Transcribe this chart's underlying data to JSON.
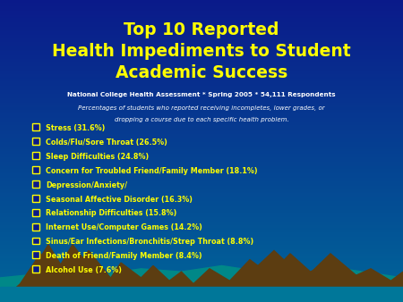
{
  "title_line1": "Top 10 Reported",
  "title_line2": "Health Impediments to Student",
  "title_line3": "Academic Success",
  "subtitle1": "National College Health Assessment * Spring 2005 * 54,111 Respondents",
  "subtitle2": "Percentages of students who reported receiving incompletes, lower grades, or",
  "subtitle3": "dropping a course due to each specific health problem.",
  "items": [
    "Stress (31.6%)",
    "Colds/Flu/Sore Throat (26.5%)",
    "Sleep Difficulties (24.8%)",
    "Concern for Troubled Friend/Family Member (18.1%)",
    "Depression/Anxiety/",
    "Seasonal Affective Disorder (16.3%)",
    "Relationship Difficulties (15.8%)",
    "Internet Use/Computer Games (14.2%)",
    "Sinus/Ear Infections/Bronchitis/Strep Throat (8.8%)",
    "Death of Friend/Family Member (8.4%)",
    "Alcohol Use (7.6%)"
  ],
  "bg_top_color": "#0a1a8a",
  "bg_bottom_color": "#006699",
  "title_color": "#ffff00",
  "subtitle_color": "#ffffff",
  "item_color": "#ffff00",
  "checkbox_color": "#ffff00",
  "mountain_color": "#5c3d11",
  "mountain_teal": "#008080"
}
